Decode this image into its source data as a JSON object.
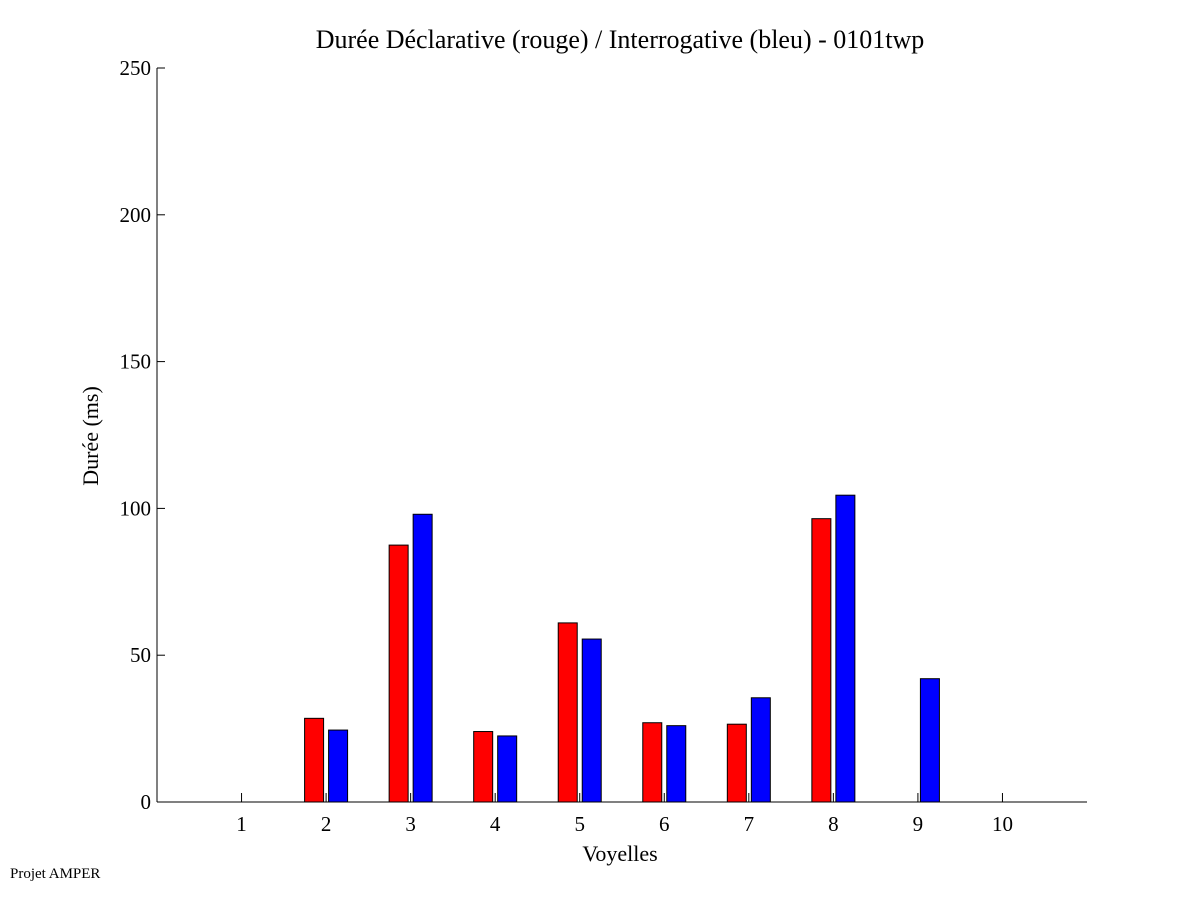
{
  "chart_data": {
    "type": "bar",
    "title": "Durée Déclarative (rouge) / Interrogative (bleu) - 0101twp",
    "xlabel": "Voyelles",
    "ylabel": "Durée (ms)",
    "categories": [
      "1",
      "2",
      "3",
      "4",
      "5",
      "6",
      "7",
      "8",
      "9",
      "10"
    ],
    "xlim": [
      0,
      11
    ],
    "ylim": [
      0,
      250
    ],
    "yticks": [
      "0",
      "50",
      "100",
      "150",
      "200",
      "250"
    ],
    "grid": false,
    "legend": "none",
    "series": [
      {
        "color": "#ff0000",
        "values": [
          0,
          28.5,
          87.5,
          24,
          61,
          27,
          26.5,
          96.5,
          0,
          0
        ]
      },
      {
        "color": "#0000ff",
        "values": [
          0,
          24.5,
          98,
          22.5,
          55.5,
          26,
          35.5,
          104.5,
          42,
          0
        ]
      }
    ]
  },
  "footer": {
    "text": "Projet AMPER"
  }
}
